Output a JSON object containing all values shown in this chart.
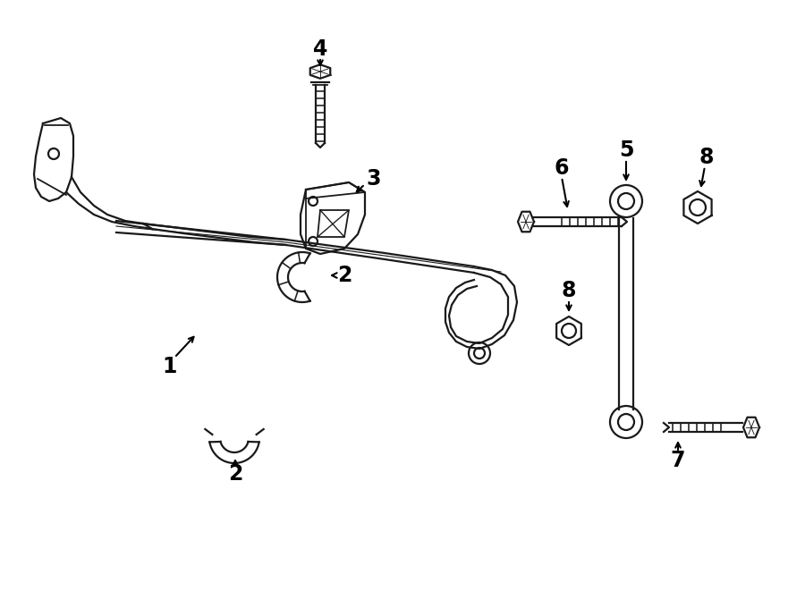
{
  "bg_color": "#ffffff",
  "line_color": "#1a1a1a",
  "lw": 1.6,
  "fig_width": 9.0,
  "fig_height": 6.61,
  "dpi": 100,
  "font_size": 17
}
